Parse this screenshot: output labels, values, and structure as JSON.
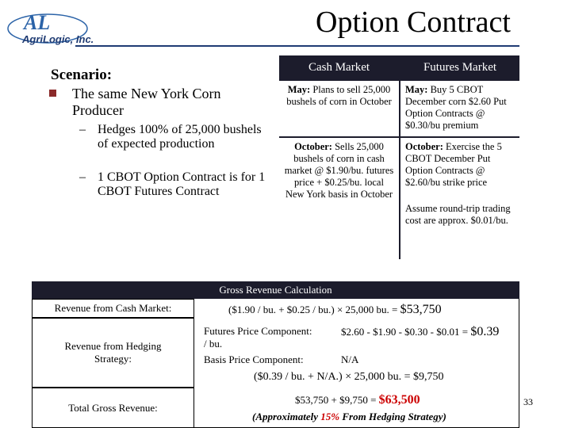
{
  "header": {
    "title": "Option Contract",
    "logo": {
      "mark": "AL",
      "name": "AgriLogic, Inc."
    }
  },
  "scenario": {
    "heading": "Scenario:",
    "bullet": "The same New York Corn Producer",
    "subbullets": [
      "Hedges 100% of 25,000 bushels of expected production",
      "1 CBOT Option Contract is for 1 CBOT Futures Contract"
    ]
  },
  "table": {
    "columns": [
      "Cash Market",
      "Futures Market"
    ],
    "rows": [
      [
        {
          "label": "May:",
          "text": "Plans to sell 25,000 bushels of corn in October"
        },
        {
          "label": "May:",
          "text": "Buy 5 CBOT December corn $2.60 Put Option Contracts @ $0.30/bu premium"
        }
      ],
      [
        {
          "label": "October:",
          "text": "Sells 25,000 bushels of corn in cash market @ $1.90/bu. futures price + $0.25/bu. local New York basis in October"
        },
        {
          "label": "October:",
          "text": "Exercise the 5 CBOT December Put Option Contracts @ $2.60/bu strike price",
          "note": "Assume round-trip trading cost are approx. $0.01/bu."
        }
      ]
    ]
  },
  "revenue": {
    "title": "Gross Revenue Calculation",
    "cash": {
      "label": "Revenue from Cash Market:",
      "formula": "($1.90 / bu. + $0.25 / bu.) × 25,000 bu. =",
      "result": "$53,750"
    },
    "hedging": {
      "label": "Revenue from Hedging Strategy:",
      "futures_label": "Futures Price Component:",
      "futures_formula": "$2.60 - $1.90 - $0.30 - $0.01 =",
      "futures_result": "$0.39",
      "futures_unit": "/ bu.",
      "basis_label": "Basis Price Component:",
      "basis_value": "N/A",
      "formula": "($0.39 / bu. + N/A.) × 25,000 bu. = $9,750"
    },
    "total": {
      "label": "Total Gross Revenue:",
      "formula": "$53,750 + $9,750 =",
      "result": "$63,500",
      "note_prefix": "(Approximately",
      "note_highlight": "15%",
      "note_suffix": "From Hedging Strategy)"
    }
  },
  "page_number": "33"
}
